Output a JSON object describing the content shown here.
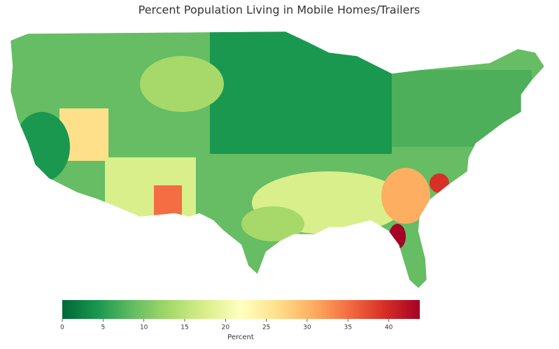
{
  "chart_data": {
    "type": "choropleth",
    "title": "Percent Population Living in Mobile Homes/Trailers",
    "colorbar": {
      "label": "Percent",
      "lim": [
        0,
        43.8
      ],
      "ticks": [
        0,
        5,
        10,
        15,
        20,
        25,
        30,
        35,
        40
      ],
      "colors": [
        "#006837",
        "#1a9850",
        "#66bd63",
        "#a6d96a",
        "#d9ef8b",
        "#ffffbf",
        "#fee08b",
        "#fdae61",
        "#f46d43",
        "#d73027",
        "#a50026"
      ]
    }
  }
}
